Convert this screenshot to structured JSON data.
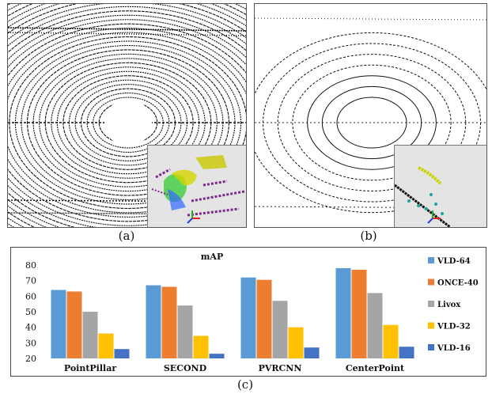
{
  "figure": {
    "sub_labels": {
      "a": "(a)",
      "b": "(b)",
      "c": "(c)"
    }
  },
  "chart_data": {
    "type": "bar",
    "title": "mAP",
    "categories": [
      "PointPillar",
      "SECOND",
      "PVRCNN",
      "CenterPoint"
    ],
    "series": [
      {
        "name": "VLD-64",
        "color": "#5b9bd5",
        "values": [
          64,
          67,
          72,
          78
        ]
      },
      {
        "name": "ONCE-40",
        "color": "#ed7d31",
        "values": [
          63,
          66,
          70.5,
          77
        ]
      },
      {
        "name": "Livox",
        "color": "#a5a5a5",
        "values": [
          50,
          54,
          57,
          62
        ]
      },
      {
        "name": "VLD-32",
        "color": "#ffc000",
        "values": [
          36,
          34.5,
          40,
          41.5
        ]
      },
      {
        "name": "VLD-16",
        "color": "#4472c4",
        "values": [
          26,
          23,
          27,
          27.5
        ]
      }
    ],
    "y_ticks": [
      20,
      30,
      40,
      50,
      60,
      70,
      80
    ],
    "ylim": [
      20,
      80
    ],
    "legend_position": "right",
    "grid": false
  }
}
